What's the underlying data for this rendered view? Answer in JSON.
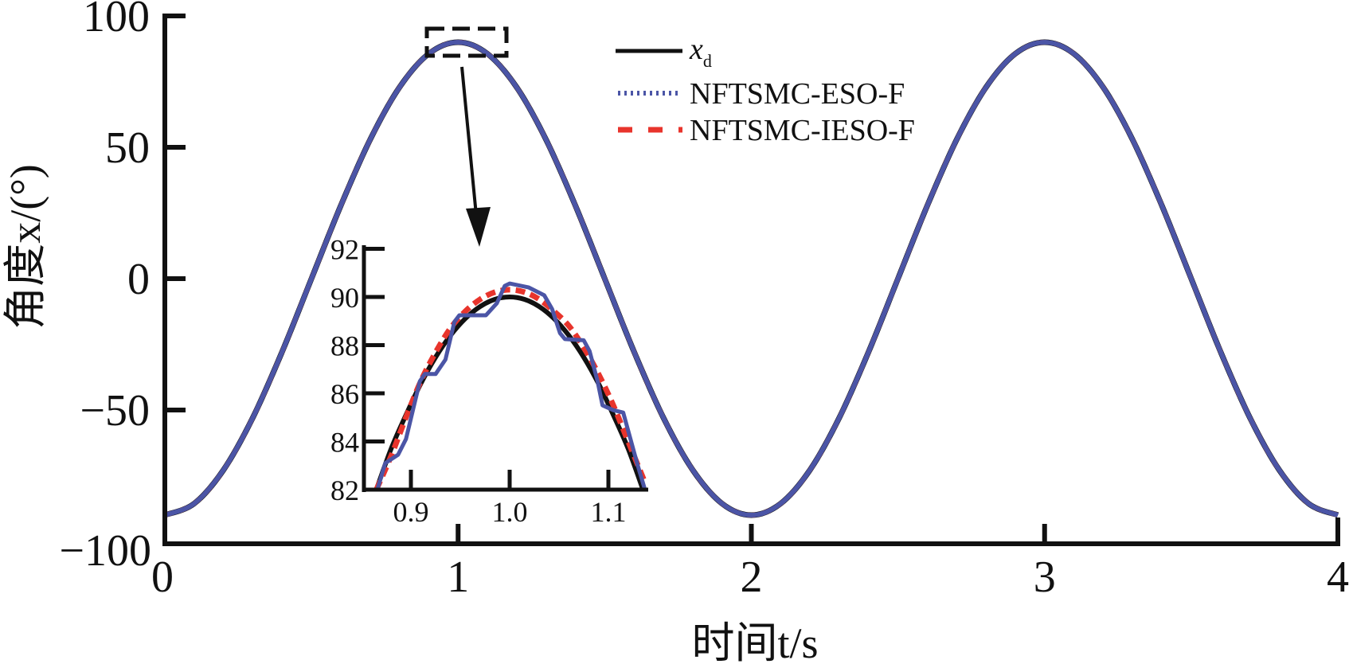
{
  "chart_data": {
    "type": "line",
    "title": "",
    "xlabel": "时间t/s",
    "ylabel": "角度x/(°)",
    "xlim": [
      0,
      4
    ],
    "ylim": [
      -100,
      100
    ],
    "xticks": [
      "0",
      "1",
      "2",
      "3",
      "4"
    ],
    "yticks": [
      "100",
      "50",
      "0",
      "−50",
      "−100"
    ],
    "grid": false,
    "legend": {
      "placement": "top-center",
      "entries": [
        {
          "label": "x",
          "subscript": "d",
          "style": "solid",
          "color": "#111111"
        },
        {
          "label": "NFTSMC-ESO-F",
          "style": "dotted",
          "color": "#4b55a6"
        },
        {
          "label": "NFTSMC-IESO-F",
          "style": "dashed",
          "color": "#e8342c"
        }
      ]
    },
    "x": [
      0,
      0.1,
      0.2,
      0.3,
      0.4,
      0.5,
      0.6,
      0.7,
      0.8,
      0.9,
      1.0,
      1.1,
      1.2,
      1.3,
      1.4,
      1.5,
      1.6,
      1.7,
      1.8,
      1.9,
      2.0,
      2.1,
      2.2,
      2.3,
      2.4,
      2.5,
      2.6,
      2.7,
      2.8,
      2.9,
      3.0,
      3.1,
      3.2,
      3.3,
      3.4,
      3.5,
      3.6,
      3.7,
      3.8,
      3.9,
      4.0
    ],
    "series": [
      {
        "name": "x_d",
        "color": "#111111",
        "values": [
          -90,
          -85.6,
          -72.8,
          -52.9,
          -27.8,
          0,
          27.8,
          52.9,
          72.8,
          85.6,
          90,
          85.6,
          72.8,
          52.9,
          27.8,
          0,
          -27.8,
          -52.9,
          -72.8,
          -85.6,
          -90,
          -85.6,
          -72.8,
          -52.9,
          -27.8,
          0,
          27.8,
          52.9,
          72.8,
          85.6,
          90,
          85.6,
          72.8,
          52.9,
          27.8,
          0,
          -27.8,
          -52.9,
          -72.8,
          -85.6,
          -90
        ]
      },
      {
        "name": "NFTSMC-IESO-F",
        "color": "#e8342c",
        "values": [
          -90,
          -85.6,
          -72.8,
          -52.9,
          -27.8,
          0,
          27.8,
          52.9,
          72.8,
          85.6,
          90,
          85.6,
          72.8,
          52.9,
          27.8,
          0,
          -27.8,
          -52.9,
          -72.8,
          -85.6,
          -90,
          -85.6,
          -72.8,
          -52.9,
          -27.8,
          0,
          27.8,
          52.9,
          72.8,
          85.6,
          90,
          85.6,
          72.8,
          52.9,
          27.8,
          0,
          -27.8,
          -52.9,
          -72.8,
          -85.6,
          -90
        ]
      },
      {
        "name": "NFTSMC-ESO-F",
        "color": "#4b55a6",
        "values": [
          -90,
          -85.6,
          -72.8,
          -52.9,
          -27.8,
          0,
          27.8,
          52.9,
          72.8,
          85.6,
          90,
          85.6,
          72.8,
          52.9,
          27.8,
          0,
          -27.8,
          -52.9,
          -72.8,
          -85.6,
          -90,
          -85.6,
          -72.8,
          -52.9,
          -27.8,
          0,
          27.8,
          52.9,
          72.8,
          85.6,
          90,
          85.6,
          72.8,
          52.9,
          27.8,
          0,
          -27.8,
          -52.9,
          -72.8,
          -85.6,
          -90
        ]
      }
    ],
    "annotations": [
      {
        "type": "zoom-box",
        "xrange": [
          0.9,
          1.1
        ],
        "yrange": [
          85,
          95
        ],
        "style": "dashed"
      },
      {
        "type": "arrow",
        "from": "zoom-box",
        "to": "inset"
      }
    ],
    "inset": {
      "xlim": [
        0.85,
        1.14
      ],
      "ylim": [
        82,
        92
      ],
      "xticks": [
        "0.9",
        "1.0",
        "1.1"
      ],
      "yticks": [
        "92",
        "90",
        "88",
        "86",
        "84",
        "82"
      ],
      "series": [
        {
          "name": "x_d",
          "color": "#111111",
          "x": [
            0.865,
            0.88,
            0.895,
            0.91,
            0.925,
            0.94,
            0.955,
            0.97,
            0.985,
            1.0,
            1.015,
            1.03,
            1.045,
            1.06,
            1.075,
            1.09,
            1.105,
            1.12,
            1.135
          ],
          "values": [
            82.0,
            83.7,
            85.1,
            86.4,
            87.5,
            88.4,
            89.1,
            89.6,
            89.9,
            90.0,
            89.9,
            89.6,
            89.1,
            88.4,
            87.5,
            86.4,
            85.1,
            83.7,
            82.0
          ]
        },
        {
          "name": "NFTSMC-IESO-F",
          "color": "#e8342c",
          "x": [
            0.865,
            0.88,
            0.895,
            0.91,
            0.925,
            0.94,
            0.955,
            0.97,
            0.985,
            1.0,
            1.015,
            1.03,
            1.045,
            1.06,
            1.075,
            1.09,
            1.105,
            1.12,
            1.137
          ],
          "values": [
            82.0,
            83.4,
            85.0,
            86.5,
            87.7,
            88.7,
            89.4,
            89.9,
            90.2,
            90.3,
            90.2,
            89.9,
            89.4,
            88.8,
            87.9,
            86.8,
            85.5,
            84.0,
            82.3
          ]
        },
        {
          "name": "NFTSMC-ESO-F",
          "color": "#4b55a6",
          "x": [
            0.866,
            0.874,
            0.887,
            0.895,
            0.909,
            0.914,
            0.925,
            0.935,
            0.944,
            0.949,
            0.976,
            0.987,
            0.995,
            1.0,
            1.019,
            1.035,
            1.043,
            1.051,
            1.056,
            1.075,
            1.081,
            1.089,
            1.094,
            1.105,
            1.115,
            1.129,
            1.137
          ],
          "values": [
            82.0,
            83.1,
            83.45,
            84.1,
            86.5,
            86.8,
            86.8,
            87.4,
            88.97,
            89.24,
            89.24,
            89.74,
            90.46,
            90.56,
            90.4,
            90.07,
            89.5,
            88.5,
            88.25,
            88.2,
            87.75,
            86.5,
            85.5,
            85.3,
            85.2,
            83.1,
            82.0
          ]
        }
      ]
    }
  }
}
